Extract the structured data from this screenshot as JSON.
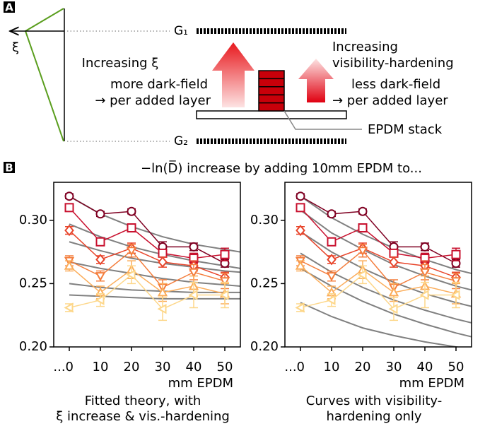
{
  "panel_a": {
    "label": "A",
    "xi": "ξ",
    "g1": "G₁",
    "g2": "G₂",
    "left_title": "Increasing ξ",
    "left_text": [
      "more dark-field",
      "→ per added layer"
    ],
    "right_title": [
      "Increasing",
      "visibility-hardening"
    ],
    "right_text": [
      "less dark-field",
      "→ per added layer"
    ],
    "stack_label": "EPDM stack"
  },
  "panel_b": {
    "label": "B",
    "title": "−ln(D̅) increase by adding 10mm EPDM to..."
  },
  "chart_data": [
    {
      "type": "line",
      "xlabel": "mm EPDM",
      "caption": [
        "Fitted theory, with",
        "ξ increase & vis.-hardening"
      ],
      "x": [
        0,
        10,
        20,
        30,
        40,
        50
      ],
      "xlim": [
        -5,
        55
      ],
      "xticks": [
        {
          "value": 0,
          "label": "...0"
        },
        10,
        20,
        30,
        40,
        50
      ],
      "ylim": [
        0.2,
        0.33
      ],
      "yticks": [
        {
          "value": 0.2,
          "label": "0.20"
        },
        {
          "value": 0.25,
          "label": "0.25"
        },
        {
          "value": 0.3,
          "label": "0.30"
        }
      ],
      "series": [
        {
          "color": "#7f0022",
          "marker": "o",
          "values": [
            0.319,
            0.305,
            0.307,
            0.279,
            0.279,
            0.266
          ],
          "errors": [
            0.002,
            0.002,
            0.002,
            0.004,
            0.003,
            0.003
          ]
        },
        {
          "color": "#c8102e",
          "marker": "s",
          "values": [
            0.31,
            0.283,
            0.294,
            0.274,
            0.27,
            0.273
          ],
          "errors": [
            0.003,
            0.003,
            0.003,
            0.003,
            0.004,
            0.005
          ]
        },
        {
          "color": "#e8452b",
          "marker": "D",
          "values": [
            0.292,
            0.269,
            0.278,
            0.267,
            0.264,
            0.255
          ],
          "errors": [
            0.003,
            0.003,
            0.004,
            0.004,
            0.004,
            0.004
          ]
        },
        {
          "color": "#f47d3c",
          "marker": "v",
          "values": [
            0.268,
            0.256,
            0.276,
            0.247,
            0.259,
            0.252
          ],
          "errors": [
            0.004,
            0.004,
            0.005,
            0.006,
            0.006,
            0.006
          ]
        },
        {
          "color": "#fbad5a",
          "marker": "^",
          "values": [
            0.264,
            0.243,
            0.261,
            0.243,
            0.248,
            0.242
          ],
          "errors": [
            0.004,
            0.005,
            0.007,
            0.007,
            0.008,
            0.008
          ]
        },
        {
          "color": "#fdd78a",
          "marker": "<",
          "values": [
            0.231,
            0.237,
            0.257,
            0.23,
            0.241,
            0.241
          ],
          "errors": [
            0.003,
            0.005,
            0.007,
            0.009,
            0.01,
            0.01
          ]
        }
      ],
      "fits": {
        "color": "#808080",
        "x": [
          0,
          10,
          20,
          30,
          40,
          50,
          55
        ],
        "curves": [
          [
            0.319,
            0.305,
            0.295,
            0.287,
            0.281,
            0.277,
            0.275
          ],
          [
            0.297,
            0.287,
            0.279,
            0.273,
            0.268,
            0.264,
            0.262
          ],
          [
            0.283,
            0.276,
            0.27,
            0.266,
            0.263,
            0.26,
            0.259
          ],
          [
            0.267,
            0.262,
            0.258,
            0.254,
            0.251,
            0.249,
            0.248
          ],
          [
            0.25,
            0.247,
            0.245,
            0.244,
            0.243,
            0.243,
            0.243
          ],
          [
            0.241,
            0.24,
            0.239,
            0.238,
            0.238,
            0.238,
            0.238
          ]
        ]
      }
    },
    {
      "type": "line",
      "xlabel": "mm EPDM",
      "caption": [
        "Curves with visibility-",
        "hardening only"
      ],
      "x": [
        0,
        10,
        20,
        30,
        40,
        50
      ],
      "xlim": [
        -5,
        55
      ],
      "xticks": [
        {
          "value": 0,
          "label": "...0"
        },
        10,
        20,
        30,
        40,
        50
      ],
      "ylim": [
        0.2,
        0.33
      ],
      "yticks": [
        {
          "value": 0.2,
          "label": "0.20"
        },
        {
          "value": 0.25,
          "label": "0.25"
        },
        {
          "value": 0.3,
          "label": "0.30"
        }
      ],
      "series": [
        {
          "color": "#7f0022",
          "marker": "o",
          "values": [
            0.319,
            0.305,
            0.307,
            0.279,
            0.279,
            0.266
          ],
          "errors": [
            0.002,
            0.002,
            0.002,
            0.004,
            0.003,
            0.003
          ]
        },
        {
          "color": "#c8102e",
          "marker": "s",
          "values": [
            0.31,
            0.283,
            0.294,
            0.274,
            0.27,
            0.273
          ],
          "errors": [
            0.003,
            0.003,
            0.003,
            0.003,
            0.004,
            0.005
          ]
        },
        {
          "color": "#e8452b",
          "marker": "D",
          "values": [
            0.292,
            0.269,
            0.278,
            0.267,
            0.264,
            0.255
          ],
          "errors": [
            0.003,
            0.003,
            0.004,
            0.004,
            0.004,
            0.004
          ]
        },
        {
          "color": "#f47d3c",
          "marker": "v",
          "values": [
            0.268,
            0.256,
            0.276,
            0.247,
            0.259,
            0.252
          ],
          "errors": [
            0.004,
            0.004,
            0.005,
            0.006,
            0.006,
            0.006
          ]
        },
        {
          "color": "#fbad5a",
          "marker": "^",
          "values": [
            0.264,
            0.243,
            0.261,
            0.243,
            0.248,
            0.242
          ],
          "errors": [
            0.004,
            0.005,
            0.007,
            0.007,
            0.008,
            0.008
          ]
        },
        {
          "color": "#fdd78a",
          "marker": "<",
          "values": [
            0.231,
            0.237,
            0.257,
            0.23,
            0.241,
            0.241
          ],
          "errors": [
            0.003,
            0.005,
            0.007,
            0.009,
            0.01,
            0.01
          ]
        }
      ],
      "fits": {
        "color": "#808080",
        "x": [
          0,
          10,
          20,
          30,
          40,
          50,
          55
        ],
        "curves": [
          [
            0.319,
            0.302,
            0.289,
            0.278,
            0.269,
            0.261,
            0.258
          ],
          [
            0.308,
            0.29,
            0.277,
            0.265,
            0.256,
            0.248,
            0.245
          ],
          [
            0.291,
            0.275,
            0.262,
            0.251,
            0.242,
            0.235,
            0.232
          ],
          [
            0.274,
            0.259,
            0.247,
            0.237,
            0.229,
            0.222,
            0.219
          ],
          [
            0.262,
            0.248,
            0.236,
            0.226,
            0.218,
            0.211,
            0.208
          ],
          [
            0.235,
            0.224,
            0.215,
            0.209,
            0.204,
            0.2,
            0.198
          ]
        ]
      }
    }
  ]
}
